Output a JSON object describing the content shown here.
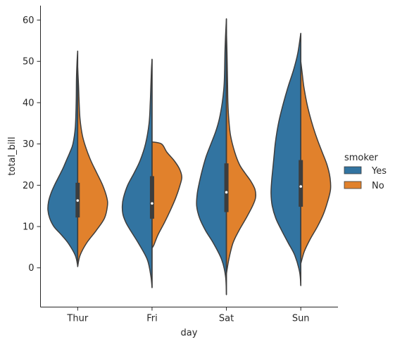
{
  "chart_data": {
    "type": "violin",
    "title": "",
    "xlabel": "day",
    "ylabel": "total_bill",
    "categories": [
      "Thur",
      "Fri",
      "Sat",
      "Sun"
    ],
    "ylim": [
      -9.5,
      63.5
    ],
    "yticks": [
      0,
      10,
      20,
      30,
      40,
      50,
      60
    ],
    "split": true,
    "grid": false,
    "legend": {
      "title": "smoker",
      "position": "right"
    },
    "series": [
      {
        "name": "Yes",
        "color": "#3274a1",
        "side": "left",
        "violins": [
          {
            "min": 0.5,
            "max": 52.5,
            "q1": 12.2,
            "median": 16.3,
            "q3": 20.6,
            "profile": [
              [
                0.5,
                0.0
              ],
              [
                3,
                0.08
              ],
              [
                6,
                0.32
              ],
              [
                8,
                0.55
              ],
              [
                10,
                0.8
              ],
              [
                12,
                0.94
              ],
              [
                14,
                1.0
              ],
              [
                16,
                0.98
              ],
              [
                18,
                0.9
              ],
              [
                20,
                0.78
              ],
              [
                22,
                0.64
              ],
              [
                24,
                0.5
              ],
              [
                26,
                0.38
              ],
              [
                28,
                0.26
              ],
              [
                30,
                0.16
              ],
              [
                34,
                0.08
              ],
              [
                40,
                0.05
              ],
              [
                46,
                0.04
              ],
              [
                50,
                0.02
              ],
              [
                52.5,
                0.0
              ]
            ]
          },
          {
            "min": -4.8,
            "max": 50.5,
            "q1": 11.9,
            "median": 15.6,
            "q3": 22.2,
            "profile": [
              [
                -4.8,
                0.0
              ],
              [
                -2,
                0.04
              ],
              [
                2,
                0.16
              ],
              [
                6,
                0.46
              ],
              [
                9,
                0.72
              ],
              [
                11,
                0.88
              ],
              [
                13,
                0.98
              ],
              [
                15,
                1.0
              ],
              [
                17,
                0.96
              ],
              [
                20,
                0.82
              ],
              [
                23,
                0.6
              ],
              [
                26,
                0.4
              ],
              [
                30,
                0.22
              ],
              [
                35,
                0.1
              ],
              [
                40,
                0.06
              ],
              [
                44,
                0.04
              ],
              [
                48,
                0.02
              ],
              [
                50.5,
                0.0
              ]
            ]
          },
          {
            "min": -6.5,
            "max": 60.3,
            "q1": 13.5,
            "median": 18.3,
            "q3": 25.3,
            "profile": [
              [
                -6.5,
                0.0
              ],
              [
                -2,
                0.03
              ],
              [
                2,
                0.16
              ],
              [
                6,
                0.44
              ],
              [
                9,
                0.7
              ],
              [
                12,
                0.9
              ],
              [
                15,
                1.0
              ],
              [
                18,
                0.98
              ],
              [
                21,
                0.9
              ],
              [
                24,
                0.8
              ],
              [
                27,
                0.68
              ],
              [
                30,
                0.52
              ],
              [
                33,
                0.36
              ],
              [
                36,
                0.24
              ],
              [
                40,
                0.14
              ],
              [
                44,
                0.08
              ],
              [
                48,
                0.06
              ],
              [
                52,
                0.05
              ],
              [
                56,
                0.03
              ],
              [
                60.3,
                0.0
              ]
            ]
          },
          {
            "min": -4.3,
            "max": 56.8,
            "q1": 14.8,
            "median": 19.7,
            "q3": 26.1,
            "profile": [
              [
                -4.3,
                0.0
              ],
              [
                -1,
                0.04
              ],
              [
                3,
                0.2
              ],
              [
                6,
                0.42
              ],
              [
                9,
                0.64
              ],
              [
                12,
                0.84
              ],
              [
                15,
                0.96
              ],
              [
                18,
                1.0
              ],
              [
                21,
                0.98
              ],
              [
                24,
                0.94
              ],
              [
                27,
                0.9
              ],
              [
                30,
                0.86
              ],
              [
                33,
                0.8
              ],
              [
                36,
                0.72
              ],
              [
                40,
                0.58
              ],
              [
                44,
                0.42
              ],
              [
                48,
                0.24
              ],
              [
                52,
                0.1
              ],
              [
                56.8,
                0.0
              ]
            ]
          }
        ]
      },
      {
        "name": "No",
        "color": "#e1812c",
        "side": "right",
        "violins": [
          {
            "min": 0.3,
            "max": 48.5,
            "q1": 12.2,
            "median": 16.3,
            "q3": 20.6,
            "profile": [
              [
                0.3,
                0.0
              ],
              [
                3,
                0.08
              ],
              [
                6,
                0.3
              ],
              [
                9,
                0.62
              ],
              [
                12,
                0.9
              ],
              [
                15,
                1.0
              ],
              [
                17,
                0.98
              ],
              [
                20,
                0.84
              ],
              [
                23,
                0.64
              ],
              [
                26,
                0.44
              ],
              [
                29,
                0.28
              ],
              [
                32,
                0.16
              ],
              [
                36,
                0.08
              ],
              [
                40,
                0.05
              ],
              [
                44,
                0.03
              ],
              [
                48.5,
                0.0
              ]
            ]
          },
          {
            "min": 4.8,
            "max": 30.5,
            "q1": 11.9,
            "median": 15.6,
            "q3": 22.2,
            "profile": [
              [
                4.8,
                0.0
              ],
              [
                5.5,
                0.06
              ],
              [
                8,
                0.2
              ],
              [
                11,
                0.42
              ],
              [
                14,
                0.62
              ],
              [
                17,
                0.8
              ],
              [
                20,
                0.94
              ],
              [
                22,
                1.0
              ],
              [
                24,
                0.92
              ],
              [
                26,
                0.74
              ],
              [
                28,
                0.5
              ],
              [
                30,
                0.32
              ],
              [
                30.5,
                0.0
              ]
            ]
          },
          {
            "min": -1.5,
            "max": 57.5,
            "q1": 13.5,
            "median": 18.3,
            "q3": 25.3,
            "profile": [
              [
                -1.5,
                0.0
              ],
              [
                2,
                0.08
              ],
              [
                6,
                0.22
              ],
              [
                9,
                0.42
              ],
              [
                12,
                0.66
              ],
              [
                15,
                0.88
              ],
              [
                17,
                0.98
              ],
              [
                19,
                0.96
              ],
              [
                21,
                0.82
              ],
              [
                23,
                0.62
              ],
              [
                25,
                0.44
              ],
              [
                28,
                0.28
              ],
              [
                32,
                0.14
              ],
              [
                36,
                0.08
              ],
              [
                40,
                0.05
              ],
              [
                44,
                0.04
              ],
              [
                48,
                0.03
              ],
              [
                52,
                0.02
              ],
              [
                57.5,
                0.0
              ]
            ]
          },
          {
            "min": 1.0,
            "max": 50.0,
            "q1": 14.8,
            "median": 19.7,
            "q3": 26.1,
            "profile": [
              [
                1.0,
                0.0
              ],
              [
                4,
                0.12
              ],
              [
                7,
                0.32
              ],
              [
                10,
                0.56
              ],
              [
                13,
                0.76
              ],
              [
                16,
                0.9
              ],
              [
                19,
                1.0
              ],
              [
                22,
                0.98
              ],
              [
                25,
                0.88
              ],
              [
                28,
                0.72
              ],
              [
                31,
                0.56
              ],
              [
                34,
                0.42
              ],
              [
                37,
                0.3
              ],
              [
                40,
                0.2
              ],
              [
                44,
                0.1
              ],
              [
                47,
                0.05
              ],
              [
                50,
                0.0
              ]
            ]
          }
        ]
      }
    ]
  }
}
